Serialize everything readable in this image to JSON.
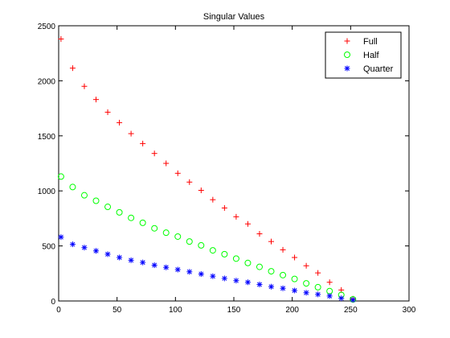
{
  "chart_data": {
    "type": "scatter",
    "title": "Singular Values",
    "xlabel": "",
    "ylabel": "",
    "xlim": [
      0,
      300
    ],
    "ylim": [
      0,
      2500
    ],
    "xticks": [
      0,
      50,
      100,
      150,
      200,
      250,
      300
    ],
    "yticks": [
      0,
      500,
      1000,
      1500,
      2000,
      2500
    ],
    "grid": false,
    "legend_position": "top-right",
    "x": [
      2,
      12,
      22,
      32,
      42,
      52,
      62,
      72,
      82,
      92,
      102,
      112,
      122,
      132,
      142,
      152,
      162,
      172,
      182,
      192,
      202,
      212,
      222,
      232,
      242,
      252
    ],
    "series": [
      {
        "name": "Full",
        "marker": "plus",
        "color": "#ff0000",
        "values": [
          2380,
          2115,
          1950,
          1830,
          1715,
          1620,
          1520,
          1430,
          1340,
          1250,
          1160,
          1080,
          1005,
          920,
          845,
          765,
          700,
          610,
          540,
          465,
          395,
          320,
          255,
          170,
          100,
          20
        ]
      },
      {
        "name": "Half",
        "marker": "circle",
        "color": "#00ff00",
        "values": [
          1130,
          1035,
          960,
          910,
          855,
          805,
          755,
          710,
          660,
          620,
          585,
          540,
          505,
          460,
          425,
          385,
          345,
          310,
          270,
          235,
          200,
          160,
          125,
          90,
          55,
          15
        ]
      },
      {
        "name": "Quarter",
        "marker": "asterisk",
        "color": "#0000ff",
        "values": [
          580,
          515,
          485,
          455,
          425,
          395,
          370,
          350,
          325,
          305,
          285,
          265,
          245,
          225,
          205,
          185,
          170,
          150,
          130,
          115,
          95,
          75,
          60,
          45,
          25,
          10
        ]
      }
    ]
  }
}
